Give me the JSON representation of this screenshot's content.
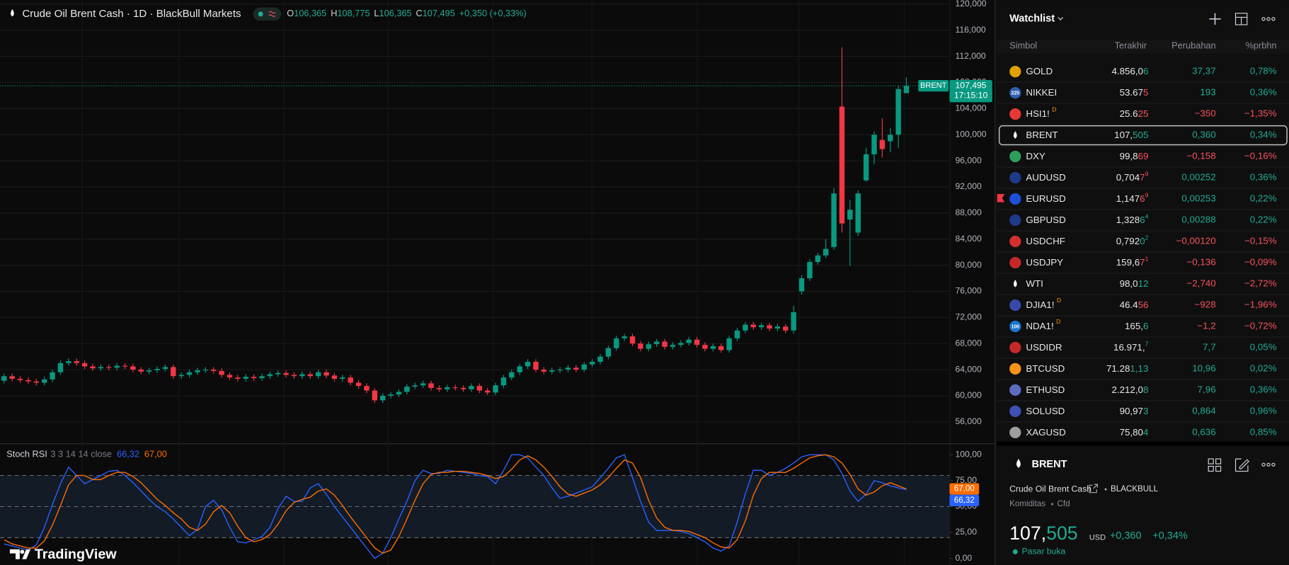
{
  "header": {
    "title": "Crude Oil Brent Cash · 1D · BlackBull Markets",
    "ohlc": [
      {
        "key": "O",
        "value": "106,365"
      },
      {
        "key": "H",
        "value": "108,775"
      },
      {
        "key": "L",
        "value": "106,365"
      },
      {
        "key": "C",
        "value": "107,495"
      }
    ],
    "change": "+0,350 (+0,33%)"
  },
  "chart": {
    "type": "candlestick",
    "up_color": "#089981",
    "down_color": "#f23645",
    "ylim": [
      52.85,
      120.63
    ],
    "yticks": [
      {
        "value": 56,
        "label": "56,000"
      },
      {
        "value": 60,
        "label": "60,000"
      },
      {
        "value": 64,
        "label": "64,000"
      },
      {
        "value": 68,
        "label": "68,000"
      },
      {
        "value": 72,
        "label": "72,000"
      },
      {
        "value": 76,
        "label": "76,000"
      },
      {
        "value": 80,
        "label": "80,000"
      },
      {
        "value": 84,
        "label": "84,000"
      },
      {
        "value": 88,
        "label": "88,000"
      },
      {
        "value": 92,
        "label": "92,000"
      },
      {
        "value": 96,
        "label": "96,000"
      },
      {
        "value": 100,
        "label": "100,000"
      },
      {
        "value": 104,
        "label": "104,000"
      },
      {
        "value": 108,
        "label": "108,000"
      },
      {
        "value": 112,
        "label": "112,000"
      },
      {
        "value": 116,
        "label": "116,000"
      },
      {
        "value": 120,
        "label": "120,000"
      }
    ],
    "price_tag": {
      "symbol": "BRENT",
      "price": "107,495",
      "countdown": "17:15:10"
    },
    "candles": [
      [
        62.3,
        63.4,
        61.9,
        63.0
      ],
      [
        63.0,
        63.4,
        62.2,
        62.6
      ],
      [
        62.6,
        63.0,
        62.0,
        62.4
      ],
      [
        62.4,
        62.8,
        61.8,
        62.2
      ],
      [
        62.2,
        62.6,
        61.6,
        62.0
      ],
      [
        62.0,
        62.9,
        61.6,
        62.5
      ],
      [
        62.5,
        64.0,
        62.1,
        63.6
      ],
      [
        63.6,
        65.4,
        63.2,
        65.0
      ],
      [
        65.0,
        65.7,
        64.6,
        65.3
      ],
      [
        65.3,
        65.7,
        64.6,
        65.0
      ],
      [
        65.0,
        65.4,
        64.1,
        64.5
      ],
      [
        64.5,
        64.9,
        63.8,
        64.2
      ],
      [
        64.2,
        64.8,
        63.8,
        64.4
      ],
      [
        64.4,
        64.8,
        63.9,
        64.3
      ],
      [
        64.3,
        65.0,
        63.9,
        64.6
      ],
      [
        64.6,
        65.0,
        64.1,
        64.5
      ],
      [
        64.5,
        64.9,
        63.6,
        64.0
      ],
      [
        64.0,
        64.4,
        63.3,
        63.7
      ],
      [
        63.7,
        64.3,
        63.3,
        63.9
      ],
      [
        63.9,
        64.5,
        63.5,
        64.1
      ],
      [
        64.1,
        64.8,
        63.7,
        64.4
      ],
      [
        64.4,
        64.8,
        62.6,
        63.0
      ],
      [
        63.0,
        63.6,
        62.6,
        63.2
      ],
      [
        63.2,
        64.0,
        62.8,
        63.6
      ],
      [
        63.6,
        64.3,
        63.2,
        63.9
      ],
      [
        63.9,
        64.4,
        63.5,
        64.0
      ],
      [
        64.0,
        64.4,
        63.4,
        63.8
      ],
      [
        63.8,
        64.2,
        62.8,
        63.2
      ],
      [
        63.2,
        63.6,
        62.4,
        62.8
      ],
      [
        62.8,
        63.2,
        62.2,
        62.6
      ],
      [
        62.6,
        63.3,
        62.2,
        62.9
      ],
      [
        62.9,
        63.3,
        62.3,
        62.7
      ],
      [
        62.7,
        63.4,
        62.3,
        63.0
      ],
      [
        63.0,
        63.7,
        62.6,
        63.3
      ],
      [
        63.3,
        63.9,
        62.9,
        63.5
      ],
      [
        63.5,
        63.9,
        62.8,
        63.2
      ],
      [
        63.2,
        63.6,
        62.6,
        63.0
      ],
      [
        63.0,
        63.7,
        62.6,
        63.3
      ],
      [
        63.3,
        63.7,
        62.6,
        63.0
      ],
      [
        63.0,
        64.0,
        62.6,
        63.6
      ],
      [
        63.6,
        64.0,
        62.7,
        63.1
      ],
      [
        63.1,
        63.5,
        62.2,
        62.6
      ],
      [
        62.6,
        63.2,
        62.2,
        62.8
      ],
      [
        62.8,
        63.2,
        61.6,
        62.0
      ],
      [
        62.0,
        62.4,
        61.1,
        61.5
      ],
      [
        61.5,
        61.9,
        60.4,
        60.8
      ],
      [
        60.8,
        61.2,
        58.9,
        59.3
      ],
      [
        59.3,
        60.4,
        58.9,
        60.0
      ],
      [
        60.0,
        60.6,
        59.6,
        60.2
      ],
      [
        60.2,
        61.0,
        59.8,
        60.6
      ],
      [
        60.6,
        61.8,
        60.2,
        61.4
      ],
      [
        61.4,
        62.0,
        61.0,
        61.6
      ],
      [
        61.6,
        62.3,
        61.2,
        61.9
      ],
      [
        61.9,
        62.3,
        60.8,
        61.2
      ],
      [
        61.2,
        61.6,
        60.6,
        61.0
      ],
      [
        61.0,
        61.7,
        60.6,
        61.3
      ],
      [
        61.3,
        61.7,
        60.8,
        61.2
      ],
      [
        61.2,
        61.6,
        60.6,
        61.0
      ],
      [
        61.0,
        61.9,
        60.6,
        61.5
      ],
      [
        61.5,
        61.9,
        60.4,
        60.8
      ],
      [
        60.8,
        61.2,
        60.1,
        60.5
      ],
      [
        60.5,
        62.0,
        60.1,
        61.6
      ],
      [
        61.6,
        63.2,
        61.2,
        62.8
      ],
      [
        62.8,
        64.0,
        62.4,
        63.6
      ],
      [
        63.6,
        64.9,
        63.2,
        64.5
      ],
      [
        64.5,
        65.6,
        64.1,
        65.2
      ],
      [
        65.2,
        65.6,
        63.6,
        64.0
      ],
      [
        64.0,
        64.4,
        63.3,
        63.7
      ],
      [
        63.7,
        64.3,
        63.3,
        63.9
      ],
      [
        63.9,
        64.4,
        63.5,
        64.0
      ],
      [
        64.0,
        64.7,
        63.6,
        64.3
      ],
      [
        64.3,
        64.7,
        63.6,
        64.0
      ],
      [
        64.0,
        65.2,
        63.6,
        64.8
      ],
      [
        64.8,
        65.6,
        64.4,
        65.2
      ],
      [
        65.2,
        66.4,
        64.8,
        66.0
      ],
      [
        66.0,
        67.7,
        65.6,
        67.3
      ],
      [
        67.3,
        69.2,
        66.9,
        68.8
      ],
      [
        68.8,
        69.5,
        68.4,
        69.1
      ],
      [
        69.1,
        69.5,
        67.6,
        68.0
      ],
      [
        68.0,
        68.4,
        66.8,
        67.2
      ],
      [
        67.2,
        68.3,
        66.8,
        67.9
      ],
      [
        67.9,
        68.7,
        67.5,
        68.3
      ],
      [
        68.3,
        68.7,
        67.1,
        67.5
      ],
      [
        67.5,
        68.2,
        67.1,
        67.8
      ],
      [
        67.8,
        68.5,
        67.4,
        68.1
      ],
      [
        68.1,
        69.0,
        67.7,
        68.6
      ],
      [
        68.6,
        69.0,
        67.4,
        67.8
      ],
      [
        67.8,
        68.2,
        66.8,
        67.2
      ],
      [
        67.2,
        68.0,
        66.8,
        67.6
      ],
      [
        67.6,
        68.0,
        66.6,
        67.0
      ],
      [
        67.0,
        69.2,
        66.6,
        68.8
      ],
      [
        68.8,
        70.4,
        68.4,
        70.0
      ],
      [
        70.0,
        71.3,
        69.6,
        70.9
      ],
      [
        70.9,
        71.3,
        70.1,
        70.5
      ],
      [
        70.5,
        71.2,
        70.1,
        70.8
      ],
      [
        70.8,
        71.2,
        69.9,
        70.3
      ],
      [
        70.3,
        71.0,
        69.9,
        70.6
      ],
      [
        70.6,
        71.0,
        69.6,
        70.0
      ],
      [
        70.0,
        73.8,
        69.5,
        72.8
      ],
      [
        76.0,
        78.5,
        75.5,
        78.0
      ],
      [
        78.0,
        80.9,
        77.6,
        80.5
      ],
      [
        80.5,
        81.9,
        80.1,
        81.5
      ],
      [
        81.5,
        84.0,
        81.1,
        82.5
      ],
      [
        82.8,
        91.8,
        82.4,
        91.0
      ],
      [
        104.3,
        113.4,
        85.0,
        86.4
      ],
      [
        87.0,
        90.0,
        79.9,
        88.5
      ],
      [
        85.0,
        91.5,
        84.5,
        91.0
      ],
      [
        93.0,
        98.0,
        92.8,
        97.0
      ],
      [
        97.0,
        100.5,
        95.5,
        100.0
      ],
      [
        99.2,
        102.5,
        96.5,
        97.8
      ],
      [
        99.0,
        101.0,
        97.3,
        100.0
      ],
      [
        100.0,
        107.5,
        98.0,
        107.0
      ],
      [
        106.365,
        108.775,
        106.365,
        107.495
      ]
    ]
  },
  "indicator": {
    "type": "line",
    "name": "Stoch RSI",
    "params": "3 3 14 14 close",
    "ylim": [
      -6.35,
      110.3
    ],
    "yticks": [
      {
        "value": 0,
        "label": "0,00"
      },
      {
        "value": 25,
        "label": "25,00"
      },
      {
        "value": 50,
        "label": "50,00"
      },
      {
        "value": 75,
        "label": "75,00"
      },
      {
        "value": 100,
        "label": "100,00"
      }
    ],
    "bands": [
      20,
      50,
      80
    ],
    "band_fill": "#131b26",
    "series": [
      {
        "color": "#2962ff",
        "value_label": "66,32",
        "values": [
          14,
          12,
          10,
          8,
          13,
          30,
          52,
          72,
          88,
          80,
          72,
          76,
          80,
          84,
          85,
          80,
          73,
          65,
          57,
          50,
          45,
          38,
          30,
          22,
          28,
          50,
          56,
          47,
          30,
          16,
          15,
          18,
          21,
          30,
          48,
          60,
          55,
          55,
          68,
          72,
          62,
          50,
          40,
          30,
          20,
          10,
          0,
          5,
          20,
          38,
          55,
          75,
          85,
          82,
          82,
          85,
          84,
          83,
          82,
          80,
          79,
          72,
          85,
          100,
          100,
          97,
          88,
          80,
          68,
          58,
          60,
          63,
          66,
          69,
          78,
          87,
          97,
          100,
          78,
          55,
          35,
          27,
          27,
          27,
          26,
          24,
          20,
          16,
          10,
          7,
          12,
          35,
          62,
          85,
          85,
          80,
          83,
          87,
          92,
          98,
          100,
          100,
          100,
          95,
          82,
          65,
          55,
          62,
          75,
          73,
          70,
          68,
          66.32
        ]
      },
      {
        "color": "#ff6d00",
        "value_label": "67,00",
        "values": [
          18,
          14,
          12,
          10,
          10,
          17,
          32,
          51,
          71,
          80,
          80,
          76,
          76,
          80,
          83,
          83,
          79,
          73,
          65,
          57,
          51,
          44,
          38,
          30,
          27,
          33,
          45,
          51,
          44,
          31,
          20,
          16,
          18,
          23,
          33,
          46,
          54,
          57,
          59,
          65,
          67,
          61,
          51,
          40,
          30,
          20,
          10,
          5,
          8,
          21,
          38,
          56,
          72,
          81,
          83,
          83,
          84,
          84,
          83,
          82,
          80,
          77,
          79,
          86,
          95,
          99,
          95,
          88,
          79,
          69,
          62,
          60,
          63,
          66,
          71,
          78,
          87,
          95,
          92,
          78,
          56,
          39,
          30,
          27,
          27,
          26,
          23,
          20,
          15,
          11,
          10,
          18,
          36,
          61,
          77,
          83,
          83,
          83,
          87,
          92,
          97,
          99,
          100,
          98,
          92,
          81,
          67,
          61,
          64,
          70,
          73,
          70,
          67
        ]
      }
    ]
  },
  "watchlist": {
    "title": "Watchlist",
    "columns": [
      "Simbol",
      "Terakhir",
      "Perubahan",
      "%prbhn"
    ],
    "up_color": "#22ab94",
    "down_color": "#f7525f",
    "badge_color": "#ff9800",
    "rows": [
      {
        "symbol": "GOLD",
        "last": "4.856,0",
        "tail": "6",
        "change": "37,37",
        "pct": "0,78%",
        "dir": "up",
        "tick": "up",
        "icon": "#e0a100"
      },
      {
        "symbol": "NIKKEI",
        "last": "53.67",
        "tail": "5",
        "change": "193",
        "pct": "0,36%",
        "dir": "up",
        "tick": "down",
        "icon": "#2f5fb3",
        "icon_text": "225"
      },
      {
        "symbol": "HSI1!",
        "badge": "D",
        "last": "25.6",
        "tail": "25",
        "change": "−350",
        "pct": "−1,35%",
        "dir": "down",
        "tick": "down",
        "icon": "#e53935"
      },
      {
        "symbol": "BRENT",
        "last": "107,",
        "tail": "505",
        "change": "0,360",
        "pct": "0,34%",
        "dir": "up",
        "tick": "up",
        "icon": "#ffffff",
        "selected": true
      },
      {
        "symbol": "DXY",
        "last": "99,8",
        "tail": "69",
        "change": "−0,158",
        "pct": "−0,16%",
        "dir": "down",
        "tick": "down",
        "icon": "#2e9e5b"
      },
      {
        "symbol": "AUDUSD",
        "last": "0,704",
        "tail": "7",
        "sup": "9",
        "change": "0,00252",
        "pct": "0,36%",
        "dir": "up",
        "tick": "down",
        "icon": "#1e3a8a"
      },
      {
        "symbol": "EURUSD",
        "last": "1,147",
        "tail": "6",
        "sup": "9",
        "change": "0,00253",
        "pct": "0,22%",
        "dir": "up",
        "tick": "down",
        "icon": "#1e4fd8",
        "flag": true
      },
      {
        "symbol": "GBPUSD",
        "last": "1,328",
        "tail": "6",
        "sup": "4",
        "change": "0,00288",
        "pct": "0,22%",
        "dir": "up",
        "tick": "up",
        "icon": "#1e3a8a"
      },
      {
        "symbol": "USDCHF",
        "last": "0,792",
        "tail": "0",
        "sup": "2",
        "change": "−0,00120",
        "pct": "−0,15%",
        "dir": "down",
        "tick": "up",
        "icon": "#d32f2f"
      },
      {
        "symbol": "USDJPY",
        "last": "159,6",
        "tail": "7",
        "sup": "1",
        "change": "−0,136",
        "pct": "−0,09%",
        "dir": "down",
        "tick": "down",
        "icon": "#c62828"
      },
      {
        "symbol": "WTI",
        "last": "98,0",
        "tail": "12",
        "change": "−2,740",
        "pct": "−2,72%",
        "dir": "down",
        "tick": "up",
        "icon": "#ffffff"
      },
      {
        "symbol": "DJIA1!",
        "badge": "D",
        "last": "46.4",
        "tail": "56",
        "change": "−928",
        "pct": "−1,96%",
        "dir": "down",
        "tick": "down",
        "icon": "#3949ab"
      },
      {
        "symbol": "NDA1!",
        "badge": "D",
        "last": "165,",
        "tail": "6",
        "change": "−1,2",
        "pct": "−0,72%",
        "dir": "down",
        "tick": "up",
        "icon": "#1976d2",
        "icon_text": "100"
      },
      {
        "symbol": "USDIDR",
        "last": "16.971,",
        "sup": "7",
        "change": "7,7",
        "pct": "0,05%",
        "dir": "up",
        "tick": "up",
        "icon": "#c62828"
      },
      {
        "symbol": "BTCUSD",
        "last": "71.28",
        "tail": "1,13",
        "change": "10,96",
        "pct": "0,02%",
        "dir": "up",
        "tick": "up",
        "icon": "#f7931a"
      },
      {
        "symbol": "ETHUSD",
        "last": "2.212,0",
        "tail": "8",
        "change": "7,96",
        "pct": "0,36%",
        "dir": "up",
        "tick": "up",
        "icon": "#5c6bc0"
      },
      {
        "symbol": "SOLUSD",
        "last": "90,97",
        "tail": "3",
        "change": "0,864",
        "pct": "0,96%",
        "dir": "up",
        "tick": "up",
        "icon": "#3f51b5"
      },
      {
        "symbol": "XAGUSD",
        "last": "75,80",
        "tail": "4",
        "change": "0,636",
        "pct": "0,85%",
        "dir": "up",
        "tick": "up",
        "icon": "#9e9e9e"
      }
    ]
  },
  "details": {
    "symbol": "BRENT",
    "name": "Crude Oil Brent Cash",
    "exchange": "BLACKBULL",
    "category": "Komiditas",
    "kind": "Cfd",
    "price": "107,",
    "price_tail": "505",
    "currency": "USD",
    "change": "+0,360",
    "pct": "+0,34%",
    "status": "Pasar buka"
  },
  "logo": "TradingView"
}
